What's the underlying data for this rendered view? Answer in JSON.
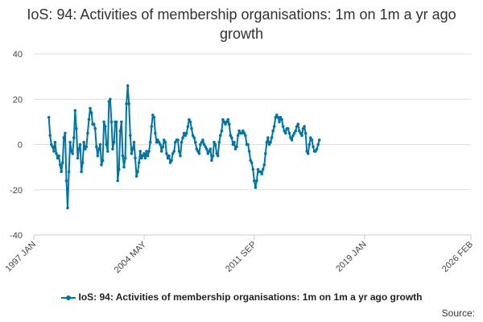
{
  "chart_data": {
    "type": "line",
    "title": "IoS: 94: Activities of membership organisations: 1m on 1m a yr ago growth",
    "xlabel": "",
    "ylabel": "",
    "ylim": [
      -40,
      40
    ],
    "yticks": [
      "40",
      "20",
      "0",
      "-20",
      "-40"
    ],
    "xticks": [
      "1997 JAN",
      "2004 MAY",
      "2011 SEP",
      "2019 JAN",
      "2026 FEB"
    ],
    "grid": true,
    "legend_position": "bottom",
    "series": [
      {
        "name": "IoS: 94: Activities of membership organisations: 1m on 1m a yr ago growth",
        "color": "#0075a3",
        "points": [
          [
            "1998-01",
            12
          ],
          [
            "1998-02",
            4
          ],
          [
            "1998-03",
            0
          ],
          [
            "1998-04",
            -1
          ],
          [
            "1998-05",
            -3
          ],
          [
            "1998-06",
            1
          ],
          [
            "1998-07",
            -4
          ],
          [
            "1998-08",
            -6
          ],
          [
            "1998-09",
            -5
          ],
          [
            "1998-10",
            -9
          ],
          [
            "1998-11",
            -12
          ],
          [
            "1998-12",
            -8
          ],
          [
            "1999-01",
            3
          ],
          [
            "1999-02",
            5
          ],
          [
            "1999-03",
            -16
          ],
          [
            "1999-04",
            -28
          ],
          [
            "1999-05",
            -12
          ],
          [
            "1999-06",
            1
          ],
          [
            "1999-07",
            -3
          ],
          [
            "1999-08",
            -4
          ],
          [
            "1999-09",
            3
          ],
          [
            "1999-10",
            15
          ],
          [
            "1999-11",
            7
          ],
          [
            "1999-12",
            -6
          ],
          [
            "2000-01",
            -2
          ],
          [
            "2000-02",
            0
          ],
          [
            "2000-03",
            -12
          ],
          [
            "2000-04",
            -8
          ],
          [
            "2000-05",
            1
          ],
          [
            "2000-06",
            -2
          ],
          [
            "2000-07",
            -1
          ],
          [
            "2000-08",
            5
          ],
          [
            "2000-09",
            11
          ],
          [
            "2000-10",
            16
          ],
          [
            "2000-11",
            14
          ],
          [
            "2000-12",
            9
          ],
          [
            "2001-01",
            9
          ],
          [
            "2001-02",
            7
          ],
          [
            "2001-03",
            -1
          ],
          [
            "2001-04",
            -5
          ],
          [
            "2001-05",
            -2
          ],
          [
            "2001-06",
            0
          ],
          [
            "2001-07",
            -9
          ],
          [
            "2001-08",
            -7
          ],
          [
            "2001-09",
            10
          ],
          [
            "2001-10",
            8
          ],
          [
            "2001-11",
            0
          ],
          [
            "2001-12",
            -3
          ],
          [
            "2002-01",
            19
          ],
          [
            "2002-02",
            20
          ],
          [
            "2002-03",
            10
          ],
          [
            "2002-04",
            -2
          ],
          [
            "2002-05",
            1
          ],
          [
            "2002-06",
            10
          ],
          [
            "2002-07",
            10
          ],
          [
            "2002-08",
            -16
          ],
          [
            "2002-09",
            -11
          ],
          [
            "2002-10",
            6
          ],
          [
            "2002-11",
            10
          ],
          [
            "2002-12",
            -5
          ],
          [
            "2003-01",
            -10
          ],
          [
            "2003-02",
            -6
          ],
          [
            "2003-03",
            18
          ],
          [
            "2003-04",
            26
          ],
          [
            "2003-05",
            18
          ],
          [
            "2003-06",
            4
          ],
          [
            "2003-07",
            -4
          ],
          [
            "2003-08",
            -2
          ],
          [
            "2003-09",
            1
          ],
          [
            "2003-10",
            -6
          ],
          [
            "2003-11",
            -14
          ],
          [
            "2003-12",
            -12
          ],
          [
            "2004-01",
            -8
          ],
          [
            "2004-02",
            -3
          ],
          [
            "2004-03",
            -6
          ],
          [
            "2004-04",
            -5
          ],
          [
            "2004-05",
            -4
          ],
          [
            "2004-06",
            -6
          ],
          [
            "2004-07",
            -3
          ],
          [
            "2004-08",
            -5
          ],
          [
            "2004-09",
            -3
          ],
          [
            "2004-10",
            1
          ],
          [
            "2004-11",
            8
          ],
          [
            "2004-12",
            13
          ],
          [
            "2005-01",
            12
          ],
          [
            "2005-02",
            5
          ],
          [
            "2005-03",
            1
          ],
          [
            "2005-04",
            2
          ],
          [
            "2005-05",
            1
          ],
          [
            "2005-06",
            0
          ],
          [
            "2005-07",
            -3
          ],
          [
            "2005-08",
            -1
          ],
          [
            "2005-09",
            2
          ],
          [
            "2005-10",
            1
          ],
          [
            "2005-11",
            -4
          ],
          [
            "2005-12",
            -6
          ],
          [
            "2006-01",
            -5
          ],
          [
            "2006-02",
            -8
          ],
          [
            "2006-03",
            -7
          ],
          [
            "2006-04",
            -4
          ],
          [
            "2006-05",
            -3
          ],
          [
            "2006-06",
            1
          ],
          [
            "2006-07",
            2
          ],
          [
            "2006-08",
            2
          ],
          [
            "2006-09",
            -3
          ],
          [
            "2006-10",
            -5
          ],
          [
            "2006-11",
            1
          ],
          [
            "2006-12",
            3
          ],
          [
            "2007-01",
            5
          ],
          [
            "2007-02",
            4
          ],
          [
            "2007-03",
            5
          ],
          [
            "2007-04",
            8
          ],
          [
            "2007-05",
            11
          ],
          [
            "2007-06",
            10
          ],
          [
            "2007-07",
            7
          ],
          [
            "2007-08",
            4
          ],
          [
            "2007-09",
            3
          ],
          [
            "2007-10",
            1
          ],
          [
            "2007-11",
            -2
          ],
          [
            "2007-12",
            -3
          ],
          [
            "2008-01",
            -4
          ],
          [
            "2008-02",
            0
          ],
          [
            "2008-03",
            1
          ],
          [
            "2008-04",
            2
          ],
          [
            "2008-05",
            0
          ],
          [
            "2008-06",
            -1
          ],
          [
            "2008-07",
            -2
          ],
          [
            "2008-08",
            -4
          ],
          [
            "2008-09",
            -3
          ],
          [
            "2008-10",
            -2
          ],
          [
            "2008-11",
            -7
          ],
          [
            "2008-12",
            -5
          ],
          [
            "2009-01",
            1
          ],
          [
            "2009-02",
            0
          ],
          [
            "2009-03",
            -4
          ],
          [
            "2009-04",
            -5
          ],
          [
            "2009-05",
            1
          ],
          [
            "2009-06",
            4
          ],
          [
            "2009-07",
            6
          ],
          [
            "2009-08",
            11
          ],
          [
            "2009-09",
            10
          ],
          [
            "2009-10",
            9
          ],
          [
            "2009-11",
            10
          ],
          [
            "2009-12",
            11
          ],
          [
            "2010-01",
            9
          ],
          [
            "2010-02",
            4
          ],
          [
            "2010-03",
            3
          ],
          [
            "2010-04",
            0
          ],
          [
            "2010-05",
            1
          ],
          [
            "2010-06",
            -2
          ],
          [
            "2010-07",
            -1
          ],
          [
            "2010-08",
            4
          ],
          [
            "2010-09",
            6
          ],
          [
            "2010-10",
            5
          ],
          [
            "2010-11",
            5
          ],
          [
            "2010-12",
            6
          ],
          [
            "2011-01",
            5
          ],
          [
            "2011-02",
            4
          ],
          [
            "2011-03",
            0
          ],
          [
            "2011-04",
            0
          ],
          [
            "2011-05",
            -3
          ],
          [
            "2011-06",
            -7
          ],
          [
            "2011-07",
            -8
          ],
          [
            "2011-08",
            -11
          ],
          [
            "2011-09",
            -16
          ],
          [
            "2011-10",
            -19
          ],
          [
            "2011-11",
            -16
          ],
          [
            "2011-12",
            -11
          ],
          [
            "2012-01",
            -12
          ],
          [
            "2012-02",
            -12
          ],
          [
            "2012-03",
            -13
          ],
          [
            "2012-04",
            -11
          ],
          [
            "2012-05",
            -9
          ],
          [
            "2012-06",
            -4
          ],
          [
            "2012-07",
            1
          ],
          [
            "2012-08",
            3
          ],
          [
            "2012-09",
            0
          ],
          [
            "2012-10",
            1
          ],
          [
            "2012-11",
            3
          ],
          [
            "2012-12",
            6
          ],
          [
            "2013-01",
            8
          ],
          [
            "2013-02",
            12
          ],
          [
            "2013-03",
            13
          ],
          [
            "2013-04",
            12
          ],
          [
            "2013-05",
            10
          ],
          [
            "2013-06",
            12
          ],
          [
            "2013-07",
            11
          ],
          [
            "2013-08",
            8
          ],
          [
            "2013-09",
            6
          ],
          [
            "2013-10",
            5
          ],
          [
            "2013-11",
            7
          ],
          [
            "2013-12",
            7
          ],
          [
            "2014-01",
            5
          ],
          [
            "2014-02",
            3
          ],
          [
            "2014-03",
            2
          ],
          [
            "2014-04",
            4
          ],
          [
            "2014-05",
            5
          ],
          [
            "2014-06",
            6
          ],
          [
            "2014-07",
            8
          ],
          [
            "2014-08",
            9
          ],
          [
            "2014-09",
            6
          ],
          [
            "2014-10",
            5
          ],
          [
            "2014-11",
            4
          ],
          [
            "2014-12",
            7
          ],
          [
            "2015-01",
            8
          ],
          [
            "2015-02",
            5
          ],
          [
            "2015-03",
            -3
          ],
          [
            "2015-04",
            -4
          ],
          [
            "2015-05",
            0
          ],
          [
            "2015-06",
            3
          ],
          [
            "2015-07",
            2
          ],
          [
            "2015-08",
            -1
          ],
          [
            "2015-09",
            -3
          ],
          [
            "2015-10",
            -3
          ],
          [
            "2015-11",
            -2
          ],
          [
            "2015-12",
            0
          ],
          [
            "2016-01",
            2
          ]
        ]
      }
    ],
    "source_label": "Source:"
  }
}
